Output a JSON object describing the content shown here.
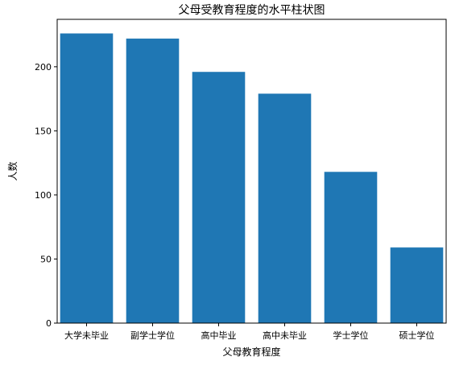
{
  "chart_data": {
    "type": "bar",
    "title": "父母受教育程度的水平柱状图",
    "xlabel": "父母教育程度",
    "ylabel": "人数",
    "categories": [
      "大学未毕业",
      "副学士学位",
      "高中毕业",
      "高中未毕业",
      "学士学位",
      "硕士学位"
    ],
    "values": [
      226,
      222,
      196,
      179,
      118,
      59
    ],
    "yticks": [
      "0",
      "50",
      "100",
      "150",
      "200"
    ],
    "ylim": [
      0,
      237
    ],
    "grid": false,
    "bar_color": "#1f77b4"
  }
}
